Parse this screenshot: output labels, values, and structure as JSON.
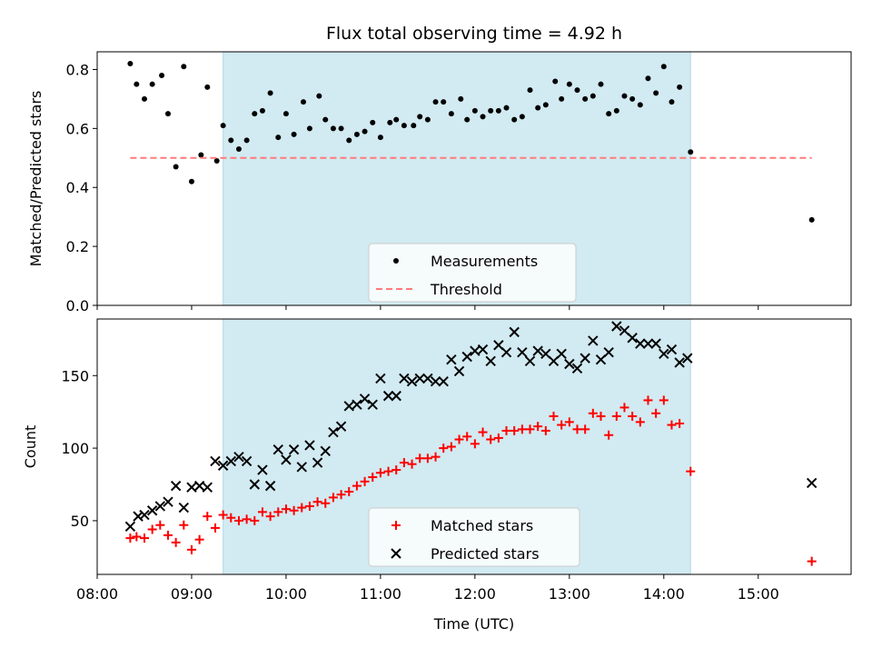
{
  "chart_data": [
    {
      "type": "scatter",
      "title": "Flux total observing time = 4.92 h",
      "xlabel": "",
      "ylabel": "Matched/Predicted stars",
      "xlim": [
        "08:00",
        "15:59"
      ],
      "ylim": [
        0,
        0.86
      ],
      "yticks": [
        0.0,
        0.2,
        0.4,
        0.6,
        0.8
      ],
      "ytick_labels": [
        "0.0",
        "0.2",
        "0.4",
        "0.6",
        "0.8"
      ],
      "shaded_x_range": [
        "09:20",
        "14:17"
      ],
      "shade_color": "#add8e6",
      "legend_location": "lower center",
      "series": [
        {
          "name": "Measurements",
          "marker": "dot",
          "color": "#000000",
          "points": [
            [
              "08:21",
              0.82
            ],
            [
              "08:25",
              0.75
            ],
            [
              "08:30",
              0.7
            ],
            [
              "08:35",
              0.75
            ],
            [
              "08:41",
              0.78
            ],
            [
              "08:45",
              0.65
            ],
            [
              "08:50",
              0.47
            ],
            [
              "08:55",
              0.81
            ],
            [
              "09:00",
              0.42
            ],
            [
              "09:06",
              0.51
            ],
            [
              "09:10",
              0.74
            ],
            [
              "09:16",
              0.49
            ],
            [
              "09:20",
              0.61
            ],
            [
              "09:25",
              0.56
            ],
            [
              "09:30",
              0.53
            ],
            [
              "09:35",
              0.56
            ],
            [
              "09:40",
              0.65
            ],
            [
              "09:45",
              0.66
            ],
            [
              "09:50",
              0.72
            ],
            [
              "09:55",
              0.57
            ],
            [
              "10:00",
              0.65
            ],
            [
              "10:05",
              0.58
            ],
            [
              "10:11",
              0.69
            ],
            [
              "10:15",
              0.6
            ],
            [
              "10:21",
              0.71
            ],
            [
              "10:25",
              0.63
            ],
            [
              "10:30",
              0.6
            ],
            [
              "10:35",
              0.6
            ],
            [
              "10:40",
              0.56
            ],
            [
              "10:45",
              0.58
            ],
            [
              "10:50",
              0.59
            ],
            [
              "10:55",
              0.62
            ],
            [
              "11:00",
              0.57
            ],
            [
              "11:06",
              0.62
            ],
            [
              "11:10",
              0.63
            ],
            [
              "11:15",
              0.61
            ],
            [
              "11:21",
              0.61
            ],
            [
              "11:25",
              0.64
            ],
            [
              "11:30",
              0.63
            ],
            [
              "11:35",
              0.69
            ],
            [
              "11:40",
              0.69
            ],
            [
              "11:45",
              0.65
            ],
            [
              "11:51",
              0.7
            ],
            [
              "11:55",
              0.63
            ],
            [
              "12:00",
              0.66
            ],
            [
              "12:05",
              0.64
            ],
            [
              "12:10",
              0.66
            ],
            [
              "12:15",
              0.66
            ],
            [
              "12:20",
              0.67
            ],
            [
              "12:25",
              0.63
            ],
            [
              "12:30",
              0.64
            ],
            [
              "12:35",
              0.73
            ],
            [
              "12:40",
              0.67
            ],
            [
              "12:45",
              0.68
            ],
            [
              "12:51",
              0.76
            ],
            [
              "12:55",
              0.7
            ],
            [
              "13:00",
              0.75
            ],
            [
              "13:05",
              0.73
            ],
            [
              "13:10",
              0.7
            ],
            [
              "13:15",
              0.71
            ],
            [
              "13:20",
              0.75
            ],
            [
              "13:25",
              0.65
            ],
            [
              "13:30",
              0.66
            ],
            [
              "13:35",
              0.71
            ],
            [
              "13:40",
              0.7
            ],
            [
              "13:45",
              0.68
            ],
            [
              "13:50",
              0.77
            ],
            [
              "13:55",
              0.72
            ],
            [
              "14:00",
              0.81
            ],
            [
              "14:05",
              0.69
            ],
            [
              "14:10",
              0.74
            ],
            [
              "14:17",
              0.52
            ],
            [
              "15:34",
              0.29
            ]
          ]
        },
        {
          "name": "Threshold",
          "marker": "dashed-line",
          "color": "#ff7b7b",
          "points": [
            [
              "08:21",
              0.5
            ],
            [
              "15:34",
              0.5
            ]
          ]
        }
      ]
    },
    {
      "type": "scatter",
      "title": "",
      "xlabel": "Time (UTC)",
      "ylabel": "Count",
      "xlim": [
        "08:00",
        "15:59"
      ],
      "ylim": [
        13,
        189
      ],
      "yticks": [
        50,
        100,
        150
      ],
      "ytick_labels": [
        "50",
        "100",
        "150"
      ],
      "xticks": [
        "08:00",
        "09:00",
        "10:00",
        "11:00",
        "12:00",
        "13:00",
        "14:00",
        "15:00"
      ],
      "shaded_x_range": [
        "09:20",
        "14:17"
      ],
      "shade_color": "#add8e6",
      "legend_location": "lower center",
      "series": [
        {
          "name": "Matched stars",
          "marker": "plus",
          "color": "#ff0000",
          "points": [
            [
              "08:21",
              38
            ],
            [
              "08:25",
              39
            ],
            [
              "08:30",
              38
            ],
            [
              "08:35",
              44
            ],
            [
              "08:40",
              47
            ],
            [
              "08:45",
              40
            ],
            [
              "08:50",
              35
            ],
            [
              "08:55",
              47
            ],
            [
              "09:00",
              30
            ],
            [
              "09:05",
              37
            ],
            [
              "09:10",
              53
            ],
            [
              "09:15",
              45
            ],
            [
              "09:20",
              54
            ],
            [
              "09:25",
              52
            ],
            [
              "09:30",
              50
            ],
            [
              "09:35",
              51
            ],
            [
              "09:40",
              50
            ],
            [
              "09:45",
              56
            ],
            [
              "09:50",
              53
            ],
            [
              "09:55",
              56
            ],
            [
              "10:00",
              58
            ],
            [
              "10:05",
              57
            ],
            [
              "10:10",
              59
            ],
            [
              "10:15",
              60
            ],
            [
              "10:20",
              63
            ],
            [
              "10:25",
              62
            ],
            [
              "10:30",
              66
            ],
            [
              "10:35",
              68
            ],
            [
              "10:40",
              70
            ],
            [
              "10:45",
              74
            ],
            [
              "10:50",
              77
            ],
            [
              "10:55",
              80
            ],
            [
              "11:00",
              83
            ],
            [
              "11:05",
              84
            ],
            [
              "11:10",
              85
            ],
            [
              "11:15",
              90
            ],
            [
              "11:20",
              89
            ],
            [
              "11:25",
              93
            ],
            [
              "11:30",
              93
            ],
            [
              "11:35",
              94
            ],
            [
              "11:40",
              100
            ],
            [
              "11:45",
              101
            ],
            [
              "11:50",
              106
            ],
            [
              "11:55",
              108
            ],
            [
              "12:00",
              103
            ],
            [
              "12:05",
              111
            ],
            [
              "12:10",
              106
            ],
            [
              "12:15",
              107
            ],
            [
              "12:20",
              112
            ],
            [
              "12:25",
              112
            ],
            [
              "12:30",
              113
            ],
            [
              "12:35",
              113
            ],
            [
              "12:40",
              115
            ],
            [
              "12:45",
              112
            ],
            [
              "12:50",
              122
            ],
            [
              "12:55",
              116
            ],
            [
              "13:00",
              118
            ],
            [
              "13:05",
              113
            ],
            [
              "13:10",
              113
            ],
            [
              "13:15",
              124
            ],
            [
              "13:20",
              122
            ],
            [
              "13:25",
              109
            ],
            [
              "13:30",
              122
            ],
            [
              "13:35",
              128
            ],
            [
              "13:40",
              122
            ],
            [
              "13:45",
              118
            ],
            [
              "13:50",
              133
            ],
            [
              "13:55",
              124
            ],
            [
              "14:00",
              133
            ],
            [
              "14:05",
              116
            ],
            [
              "14:10",
              117
            ],
            [
              "14:17",
              84
            ],
            [
              "15:34",
              22
            ]
          ]
        },
        {
          "name": "Predicted stars",
          "marker": "x",
          "color": "#000000",
          "points": [
            [
              "08:21",
              46
            ],
            [
              "08:26",
              53
            ],
            [
              "08:30",
              54
            ],
            [
              "08:35",
              57
            ],
            [
              "08:40",
              60
            ],
            [
              "08:45",
              63
            ],
            [
              "08:50",
              74
            ],
            [
              "08:55",
              59
            ],
            [
              "09:00",
              73
            ],
            [
              "09:05",
              74
            ],
            [
              "09:10",
              73
            ],
            [
              "09:15",
              91
            ],
            [
              "09:20",
              88
            ],
            [
              "09:25",
              91
            ],
            [
              "09:30",
              94
            ],
            [
              "09:35",
              91
            ],
            [
              "09:40",
              75
            ],
            [
              "09:45",
              85
            ],
            [
              "09:50",
              74
            ],
            [
              "09:55",
              99
            ],
            [
              "10:00",
              92
            ],
            [
              "10:05",
              99
            ],
            [
              "10:10",
              87
            ],
            [
              "10:15",
              102
            ],
            [
              "10:20",
              90
            ],
            [
              "10:25",
              98
            ],
            [
              "10:30",
              111
            ],
            [
              "10:35",
              115
            ],
            [
              "10:40",
              129
            ],
            [
              "10:45",
              130
            ],
            [
              "10:50",
              134
            ],
            [
              "10:55",
              130
            ],
            [
              "11:00",
              148
            ],
            [
              "11:05",
              136
            ],
            [
              "11:10",
              136
            ],
            [
              "11:15",
              148
            ],
            [
              "11:20",
              146
            ],
            [
              "11:25",
              148
            ],
            [
              "11:30",
              148
            ],
            [
              "11:35",
              146
            ],
            [
              "11:40",
              146
            ],
            [
              "11:45",
              161
            ],
            [
              "11:50",
              153
            ],
            [
              "11:55",
              163
            ],
            [
              "12:00",
              167
            ],
            [
              "12:05",
              168
            ],
            [
              "12:10",
              160
            ],
            [
              "12:15",
              171
            ],
            [
              "12:20",
              166
            ],
            [
              "12:25",
              180
            ],
            [
              "12:30",
              166
            ],
            [
              "12:35",
              160
            ],
            [
              "12:40",
              167
            ],
            [
              "12:45",
              165
            ],
            [
              "12:50",
              160
            ],
            [
              "12:55",
              165
            ],
            [
              "13:00",
              158
            ],
            [
              "13:05",
              155
            ],
            [
              "13:10",
              162
            ],
            [
              "13:15",
              174
            ],
            [
              "13:20",
              161
            ],
            [
              "13:25",
              166
            ],
            [
              "13:30",
              184
            ],
            [
              "13:35",
              181
            ],
            [
              "13:40",
              176
            ],
            [
              "13:45",
              172
            ],
            [
              "13:50",
              172
            ],
            [
              "13:55",
              172
            ],
            [
              "14:00",
              165
            ],
            [
              "14:05",
              168
            ],
            [
              "14:10",
              159
            ],
            [
              "14:15",
              162
            ],
            [
              "15:34",
              76
            ]
          ]
        }
      ]
    }
  ]
}
